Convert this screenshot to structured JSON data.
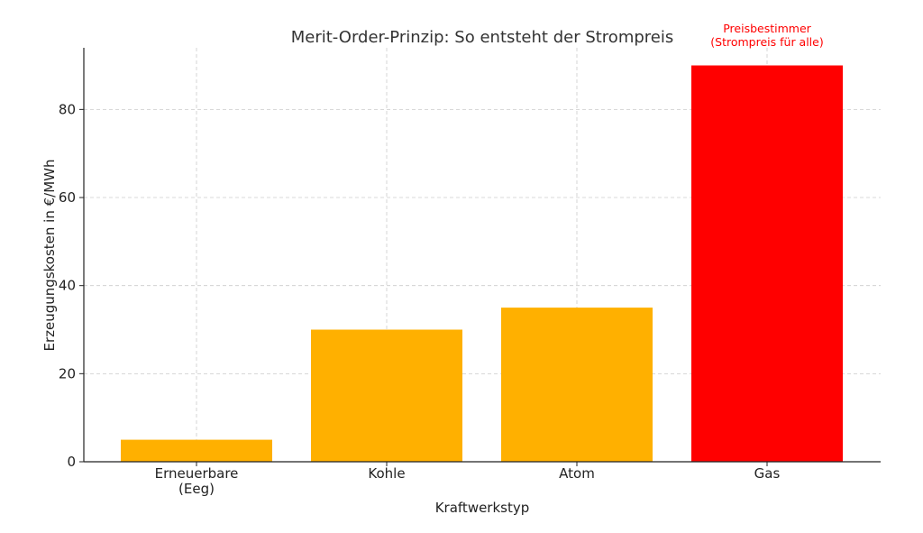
{
  "chart_data": {
    "type": "bar",
    "title": "Merit-Order-Prinzip: So entsteht der Strompreis",
    "xlabel": "Kraftwerkstyp",
    "ylabel": "Erzeugungskosten in €/MWh",
    "categories": [
      [
        "Erneuerbare",
        "(Eeg)"
      ],
      [
        "Kohle"
      ],
      [
        "Atom"
      ],
      [
        "Gas"
      ]
    ],
    "values": [
      5,
      30,
      35,
      90
    ],
    "bar_colors": [
      "#FFB000",
      "#FFB000",
      "#FFB000",
      "#FF0000"
    ],
    "ylim": [
      0,
      94
    ],
    "yticks": [
      0,
      20,
      40,
      60,
      80
    ],
    "grid": true,
    "annotation": {
      "category_index": 3,
      "lines": [
        "Preisbestimmer",
        "(Strompreis für alle)"
      ],
      "color": "#FF0000"
    }
  }
}
